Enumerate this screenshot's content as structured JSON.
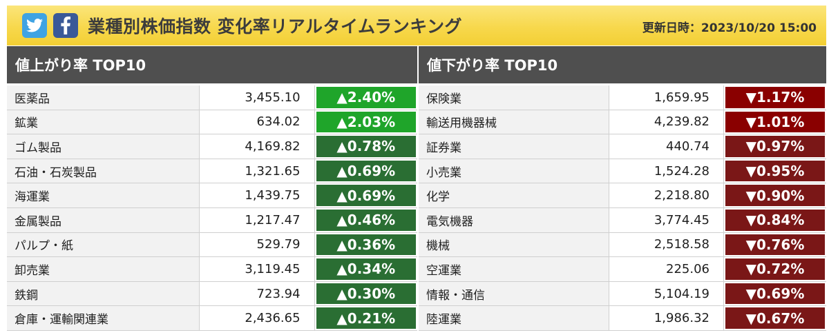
{
  "header": {
    "title": "業種別株価指数 変化率リアルタイムランキング",
    "updated": "更新日時：2023/10/20 15:00",
    "twitter_icon": "twitter-bird-icon",
    "facebook_icon": "facebook-f-icon"
  },
  "colors": {
    "header_bg": "#f7d84c",
    "panel_head_bg": "#4f4f4f",
    "up_strong": "#1fa52a",
    "up": "#2a6e33",
    "down_strong": "#8a0000",
    "down": "#7a1717"
  },
  "gainers": {
    "title": "値上がり率 TOP10",
    "rows": [
      {
        "name": "医薬品",
        "value": "3,455.10",
        "change": "▲2.40%",
        "strong": true
      },
      {
        "name": "鉱業",
        "value": "634.02",
        "change": "▲2.03%",
        "strong": true
      },
      {
        "name": "ゴム製品",
        "value": "4,169.82",
        "change": "▲0.78%",
        "strong": false
      },
      {
        "name": "石油・石炭製品",
        "value": "1,321.65",
        "change": "▲0.69%",
        "strong": false
      },
      {
        "name": "海運業",
        "value": "1,439.75",
        "change": "▲0.69%",
        "strong": false
      },
      {
        "name": "金属製品",
        "value": "1,217.47",
        "change": "▲0.46%",
        "strong": false
      },
      {
        "name": "パルプ・紙",
        "value": "529.79",
        "change": "▲0.36%",
        "strong": false
      },
      {
        "name": "卸売業",
        "value": "3,119.45",
        "change": "▲0.34%",
        "strong": false
      },
      {
        "name": "鉄鋼",
        "value": "723.94",
        "change": "▲0.30%",
        "strong": false
      },
      {
        "name": "倉庫・運輸関連業",
        "value": "2,436.65",
        "change": "▲0.21%",
        "strong": false
      }
    ]
  },
  "losers": {
    "title": "値下がり率 TOP10",
    "rows": [
      {
        "name": "保険業",
        "value": "1,659.95",
        "change": "▼1.17%",
        "strong": true
      },
      {
        "name": "輸送用機器械",
        "value": "4,239.82",
        "change": "▼1.01%",
        "strong": true
      },
      {
        "name": "証券業",
        "value": "440.74",
        "change": "▼0.97%",
        "strong": false
      },
      {
        "name": "小売業",
        "value": "1,524.28",
        "change": "▼0.95%",
        "strong": false
      },
      {
        "name": "化学",
        "value": "2,218.80",
        "change": "▼0.90%",
        "strong": false
      },
      {
        "name": "電気機器",
        "value": "3,774.45",
        "change": "▼0.84%",
        "strong": false
      },
      {
        "name": "機械",
        "value": "2,518.58",
        "change": "▼0.76%",
        "strong": false
      },
      {
        "name": "空運業",
        "value": "225.06",
        "change": "▼0.72%",
        "strong": false
      },
      {
        "name": "情報・通信",
        "value": "5,104.19",
        "change": "▼0.69%",
        "strong": false
      },
      {
        "name": "陸運業",
        "value": "1,986.32",
        "change": "▼0.67%",
        "strong": false
      }
    ]
  }
}
